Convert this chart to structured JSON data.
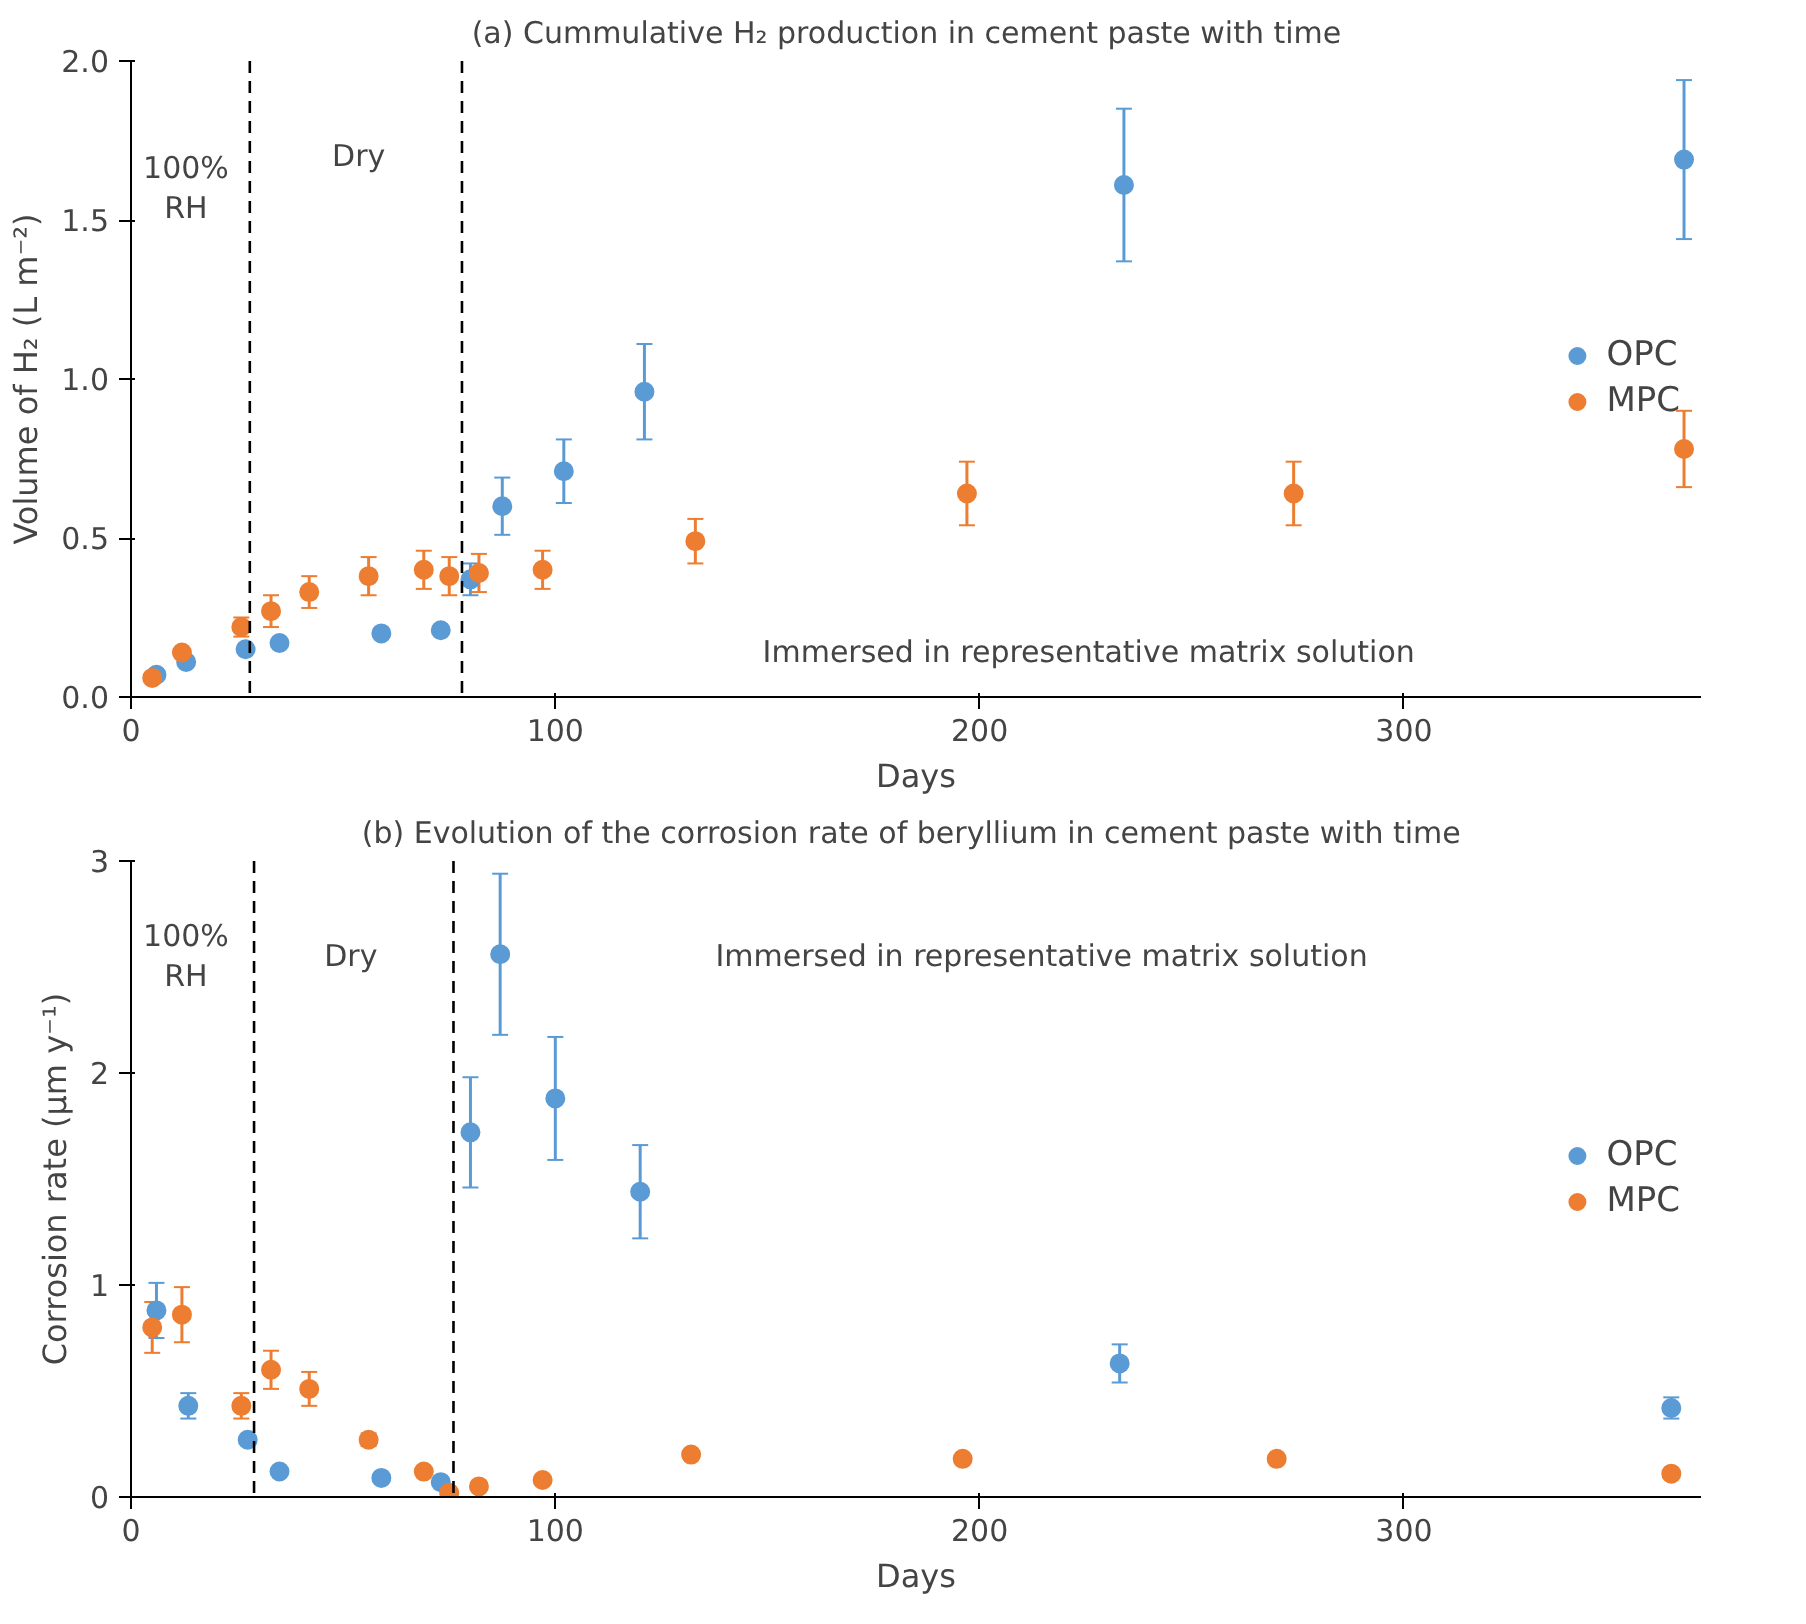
{
  "chart_data": [
    {
      "type": "scatter",
      "title": "(a)   Cummulative H₂ production in cement paste with time",
      "xlabel": "Days",
      "ylabel": "Volume of H₂ (L m⁻²)",
      "xlim": [
        0,
        370
      ],
      "xticks": [
        0,
        100,
        200,
        300
      ],
      "ylim": [
        0,
        2.0
      ],
      "yticks": [
        {
          "value": 0,
          "label": "0.0"
        },
        {
          "value": 0.5,
          "label": "0.5"
        },
        {
          "value": 1.0,
          "label": "1.0"
        },
        {
          "value": 1.5,
          "label": "1.5"
        },
        {
          "value": 2.0,
          "label": "2.0"
        }
      ],
      "grid": false,
      "legend": "right",
      "marker": "circle",
      "series": [
        {
          "name": "OPC",
          "color": "#5b9bd5",
          "x": [
            6,
            13,
            27,
            35,
            59,
            73,
            80,
            87.5,
            102,
            121,
            234,
            366
          ],
          "values": [
            0.07,
            0.11,
            0.15,
            0.17,
            0.2,
            0.21,
            0.37,
            0.6,
            0.71,
            0.96,
            1.61,
            1.69
          ],
          "errors": [
            null,
            null,
            null,
            null,
            null,
            null,
            0.05,
            0.09,
            0.1,
            0.15,
            0.24,
            0.25
          ]
        },
        {
          "name": "MPC",
          "color": "#ed7d31",
          "x": [
            5,
            12,
            26,
            33,
            42,
            56,
            69,
            75,
            82,
            97,
            133,
            197,
            274,
            366
          ],
          "values": [
            0.06,
            0.14,
            0.22,
            0.27,
            0.33,
            0.38,
            0.4,
            0.38,
            0.39,
            0.4,
            0.49,
            0.64,
            0.64,
            0.78
          ],
          "errors": [
            null,
            null,
            0.03,
            0.05,
            0.05,
            0.06,
            0.06,
            0.06,
            0.06,
            0.06,
            0.07,
            0.1,
            0.1,
            0.12
          ]
        }
      ],
      "ref_lines": [
        {
          "axis": "x",
          "value": 28,
          "line_style": "dashed",
          "color": "#000000"
        },
        {
          "axis": "x",
          "value": 78,
          "line_style": "dashed",
          "color": "#000000"
        }
      ],
      "annotations": [
        "100%\nRH",
        "Dry",
        "Immersed in representative matrix solution"
      ]
    },
    {
      "type": "scatter",
      "title": "(b)  Evolution of the corrosion rate of beryllium in cement paste with time",
      "xlabel": "Days",
      "ylabel": "Corrosion rate (µm y⁻¹)",
      "xlim": [
        0,
        370
      ],
      "xticks": [
        0,
        100,
        200,
        300
      ],
      "ylim": [
        0,
        3
      ],
      "yticks": [
        0,
        1,
        2,
        3
      ],
      "grid": false,
      "legend": "right",
      "marker": "circle",
      "series": [
        {
          "name": "OPC",
          "color": "#5b9bd5",
          "x": [
            6,
            13.5,
            27.5,
            35,
            59,
            73,
            80,
            87,
            100,
            120,
            233,
            363
          ],
          "values": [
            0.88,
            0.43,
            0.27,
            0.12,
            0.09,
            0.07,
            1.72,
            2.56,
            1.88,
            1.44,
            0.63,
            0.42
          ],
          "errors": [
            0.13,
            0.06,
            null,
            null,
            null,
            null,
            0.26,
            0.38,
            0.29,
            0.22,
            0.09,
            0.05
          ]
        },
        {
          "name": "MPC",
          "color": "#ed7d31",
          "x": [
            5,
            12,
            26,
            33,
            42,
            56,
            69,
            75,
            82,
            97,
            132,
            196,
            270,
            363
          ],
          "values": [
            0.8,
            0.86,
            0.43,
            0.6,
            0.51,
            0.27,
            0.12,
            0.02,
            0.05,
            0.08,
            0.2,
            0.18,
            0.18,
            0.11
          ],
          "errors": [
            0.12,
            0.13,
            0.06,
            0.09,
            0.08,
            0.03,
            null,
            null,
            null,
            null,
            0.02,
            null,
            null,
            null
          ]
        }
      ],
      "ref_lines": [
        {
          "axis": "x",
          "value": 29,
          "line_style": "dashed",
          "color": "#000000"
        },
        {
          "axis": "x",
          "value": 76,
          "line_style": "dashed",
          "color": "#000000"
        }
      ],
      "annotations": [
        "100%\nRH",
        "Dry",
        "Immersed in representative matrix solution"
      ]
    }
  ]
}
